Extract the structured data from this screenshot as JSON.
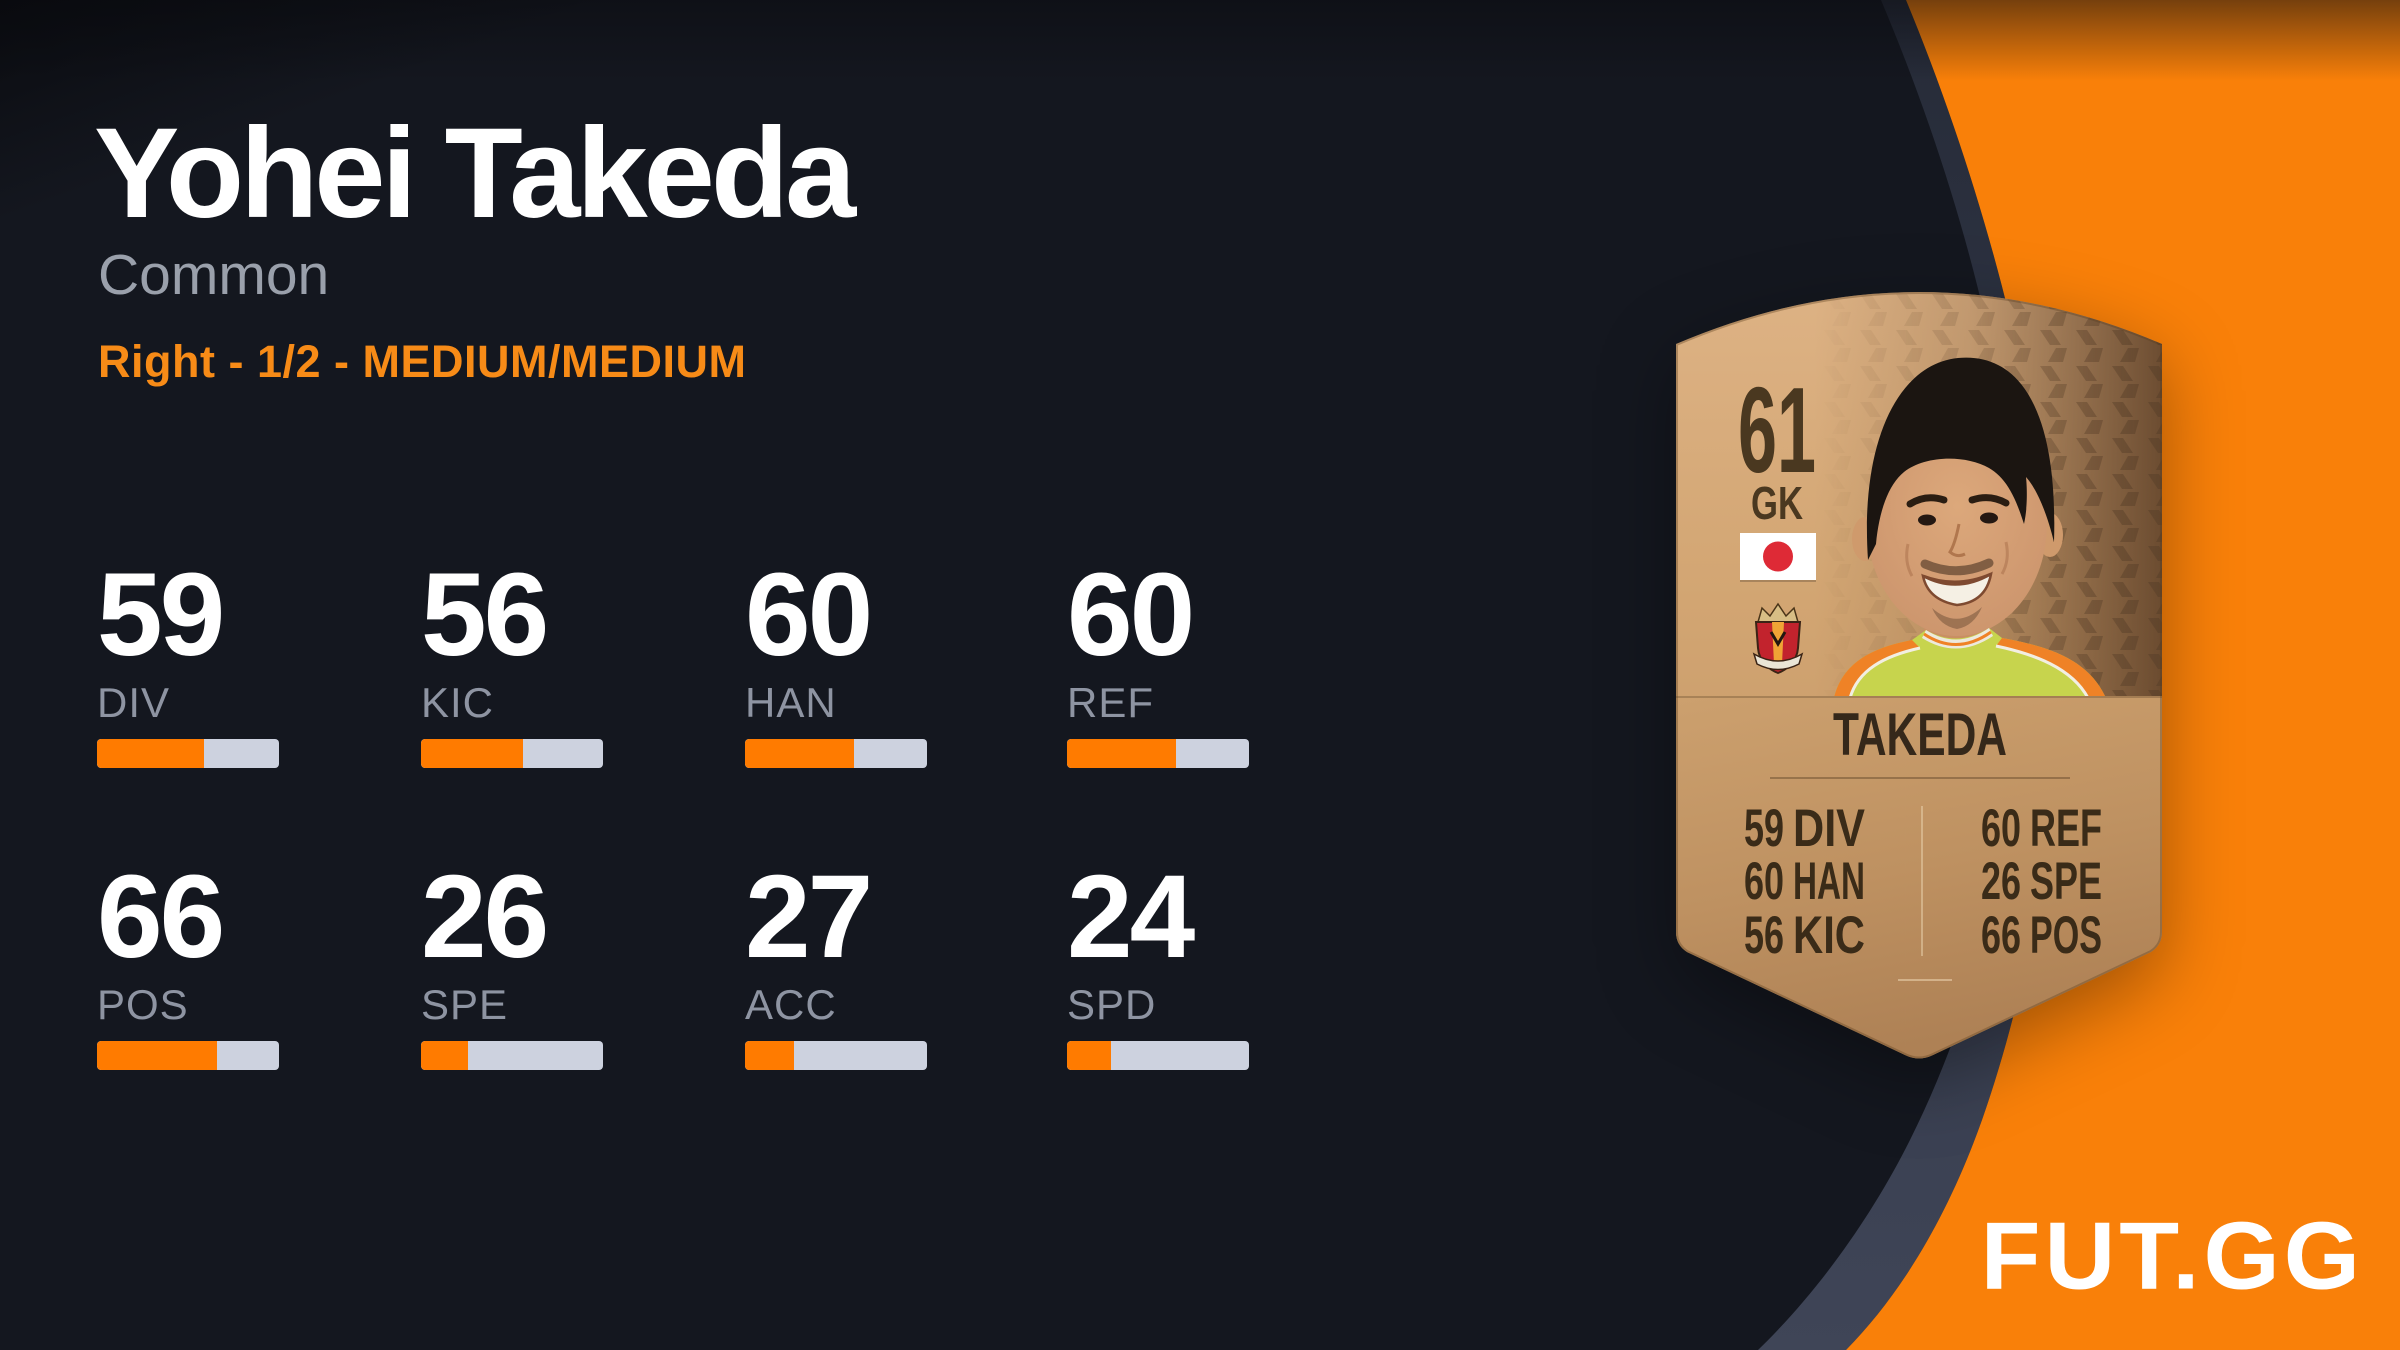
{
  "header": {
    "player_name": "Yohei Takeda",
    "rarity": "Common",
    "profile_line": "Right - 1/2 - MEDIUM/MEDIUM"
  },
  "attributes": [
    {
      "label": "DIV",
      "value": 59
    },
    {
      "label": "KIC",
      "value": 56
    },
    {
      "label": "HAN",
      "value": 60
    },
    {
      "label": "REF",
      "value": 60
    },
    {
      "label": "POS",
      "value": 66
    },
    {
      "label": "SPE",
      "value": 26
    },
    {
      "label": "ACC",
      "value": 27
    },
    {
      "label": "SPD",
      "value": 24
    }
  ],
  "card": {
    "rating": "61",
    "position": "GK",
    "name": "TAKEDA",
    "nation_icon": "japan-flag",
    "club_icon": "nagoya-grampus-badge",
    "stats_left": [
      {
        "value": "59",
        "label": "DIV"
      },
      {
        "value": "60",
        "label": "HAN"
      },
      {
        "value": "56",
        "label": "KIC"
      }
    ],
    "stats_right": [
      {
        "value": "60",
        "label": "REF"
      },
      {
        "value": "26",
        "label": "SPE"
      },
      {
        "value": "66",
        "label": "POS"
      }
    ]
  },
  "branding": {
    "logo_text": "FUT.GG"
  },
  "colors": {
    "background": "#14171F",
    "band_slate": "#3C4254",
    "orange": "#F98009",
    "accent_text": "#F78B17",
    "bar_fill": "#FF7B00",
    "bar_track": "#CDD2DF",
    "label_gray": "#8E94A2",
    "rarity_gray": "#9AA0AB",
    "card_text_brown": "#46341B"
  }
}
